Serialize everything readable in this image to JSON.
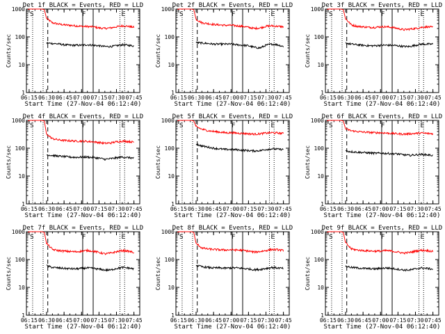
{
  "figure": {
    "xlabel": "Start Time (27-Nov-04 06:12:40)",
    "ylabel": "Counts/sec",
    "x_ticks": [
      "06:15",
      "06:30",
      "06:45",
      "07:00",
      "07:15",
      "07:30",
      "07:45"
    ],
    "y_ticks": [
      "1",
      "10",
      "100",
      "1000"
    ],
    "markers": [
      "S",
      "F",
      "E"
    ],
    "colors": {
      "events": "#000000",
      "lld": "#ff0000"
    }
  },
  "chart_data": [
    {
      "type": "line",
      "title": "Det 1f BLACK = Events, RED = LLD",
      "xlim": [
        "06:12:40",
        "07:50:00"
      ],
      "ylim": [
        1,
        1000
      ],
      "y_scale": "log",
      "x": [
        "06:30",
        "06:35",
        "06:40",
        "06:45",
        "06:50",
        "06:55",
        "07:00",
        "07:05",
        "07:10",
        "07:15",
        "07:20",
        "07:25",
        "07:30",
        "07:35",
        "07:40",
        "07:45"
      ],
      "series": [
        {
          "name": "LLD",
          "values": [
            460,
            320,
            290,
            270,
            260,
            250,
            240,
            235,
            230,
            210,
            200,
            210,
            230,
            250,
            240,
            220
          ]
        },
        {
          "name": "Events",
          "values": [
            60,
            58,
            56,
            52,
            50,
            50,
            50,
            52,
            50,
            48,
            45,
            45,
            48,
            52,
            50,
            47
          ]
        }
      ]
    },
    {
      "type": "line",
      "title": "Det 2f BLACK = Events, RED = LLD",
      "xlim": [
        "06:12:40",
        "07:50:00"
      ],
      "ylim": [
        1,
        1000
      ],
      "y_scale": "log",
      "x": [
        "06:30",
        "06:35",
        "06:40",
        "06:45",
        "06:50",
        "06:55",
        "07:00",
        "07:05",
        "07:10",
        "07:15",
        "07:20",
        "07:25",
        "07:30",
        "07:35",
        "07:40",
        "07:45"
      ],
      "series": [
        {
          "name": "LLD",
          "values": [
            430,
            320,
            300,
            280,
            270,
            260,
            260,
            250,
            240,
            220,
            200,
            210,
            240,
            250,
            240,
            230
          ]
        },
        {
          "name": "Events",
          "values": [
            62,
            60,
            58,
            55,
            55,
            55,
            55,
            52,
            50,
            48,
            42,
            40,
            50,
            55,
            52,
            45
          ]
        }
      ]
    },
    {
      "type": "line",
      "title": "Det 3f BLACK = Events, RED = LLD",
      "xlim": [
        "06:12:40",
        "07:50:00"
      ],
      "ylim": [
        1,
        1000
      ],
      "y_scale": "log",
      "x": [
        "06:30",
        "06:35",
        "06:40",
        "06:45",
        "06:50",
        "06:55",
        "07:00",
        "07:05",
        "07:10",
        "07:15",
        "07:20",
        "07:25",
        "07:30",
        "07:35",
        "07:40",
        "07:45"
      ],
      "series": [
        {
          "name": "LLD",
          "values": [
            450,
            270,
            240,
            230,
            220,
            220,
            230,
            230,
            220,
            200,
            180,
            190,
            200,
            220,
            230,
            220
          ]
        },
        {
          "name": "Events",
          "values": [
            60,
            55,
            52,
            50,
            48,
            48,
            50,
            50,
            50,
            48,
            45,
            45,
            50,
            55,
            55,
            55
          ]
        }
      ]
    },
    {
      "type": "line",
      "title": "Det 4f BLACK = Events, RED = LLD",
      "xlim": [
        "06:12:40",
        "07:50:00"
      ],
      "ylim": [
        1,
        1000
      ],
      "y_scale": "log",
      "x": [
        "06:30",
        "06:35",
        "06:40",
        "06:45",
        "06:50",
        "06:55",
        "07:00",
        "07:05",
        "07:10",
        "07:15",
        "07:20",
        "07:25",
        "07:30",
        "07:35",
        "07:40",
        "07:45"
      ],
      "series": [
        {
          "name": "LLD",
          "values": [
            320,
            220,
            200,
            190,
            185,
            180,
            180,
            175,
            170,
            160,
            150,
            155,
            170,
            180,
            175,
            165
          ]
        },
        {
          "name": "Events",
          "values": [
            58,
            55,
            52,
            50,
            48,
            47,
            48,
            48,
            46,
            44,
            40,
            42,
            45,
            48,
            46,
            44
          ]
        }
      ]
    },
    {
      "type": "line",
      "title": "Det 5f BLACK = Events, RED = LLD",
      "xlim": [
        "06:12:40",
        "07:50:00"
      ],
      "ylim": [
        1,
        1000
      ],
      "y_scale": "log",
      "x": [
        "06:30",
        "06:35",
        "06:40",
        "06:45",
        "06:50",
        "06:55",
        "07:00",
        "07:05",
        "07:10",
        "07:15",
        "07:20",
        "07:25",
        "07:30",
        "07:35",
        "07:40",
        "07:45"
      ],
      "series": [
        {
          "name": "LLD",
          "values": [
            600,
            480,
            430,
            400,
            380,
            360,
            360,
            350,
            340,
            330,
            320,
            330,
            350,
            360,
            350,
            340
          ]
        },
        {
          "name": "Events",
          "values": [
            140,
            120,
            110,
            100,
            95,
            90,
            90,
            88,
            85,
            82,
            80,
            82,
            90,
            95,
            92,
            90
          ]
        }
      ]
    },
    {
      "type": "line",
      "title": "Det 6f BLACK = Events, RED = LLD",
      "xlim": [
        "06:12:40",
        "07:50:00"
      ],
      "ylim": [
        1,
        1000
      ],
      "y_scale": "log",
      "x": [
        "06:30",
        "06:35",
        "06:40",
        "06:45",
        "06:50",
        "06:55",
        "07:00",
        "07:05",
        "07:10",
        "07:15",
        "07:20",
        "07:25",
        "07:30",
        "07:35",
        "07:40",
        "07:45"
      ],
      "series": [
        {
          "name": "LLD",
          "values": [
            500,
            420,
            400,
            380,
            370,
            360,
            360,
            350,
            340,
            330,
            320,
            330,
            340,
            350,
            340,
            330
          ]
        },
        {
          "name": "Events",
          "values": [
            80,
            75,
            72,
            70,
            68,
            66,
            66,
            65,
            64,
            62,
            58,
            55,
            58,
            60,
            58,
            55
          ]
        }
      ]
    },
    {
      "type": "line",
      "title": "Det 7f BLACK = Events, RED = LLD",
      "xlim": [
        "06:12:40",
        "07:50:00"
      ],
      "ylim": [
        1,
        1000
      ],
      "y_scale": "log",
      "x": [
        "06:30",
        "06:35",
        "06:40",
        "06:45",
        "06:50",
        "06:55",
        "07:00",
        "07:05",
        "07:10",
        "07:15",
        "07:20",
        "07:25",
        "07:30",
        "07:35",
        "07:40",
        "07:45"
      ],
      "series": [
        {
          "name": "LLD",
          "values": [
            380,
            230,
            210,
            200,
            195,
            190,
            200,
            210,
            200,
            180,
            160,
            170,
            190,
            210,
            200,
            180
          ]
        },
        {
          "name": "Events",
          "values": [
            60,
            52,
            50,
            48,
            47,
            46,
            48,
            50,
            48,
            45,
            42,
            42,
            48,
            52,
            50,
            46
          ]
        }
      ]
    },
    {
      "type": "line",
      "title": "Det 8f BLACK = Events, RED = LLD",
      "xlim": [
        "06:12:40",
        "07:50:00"
      ],
      "ylim": [
        1,
        1000
      ],
      "y_scale": "log",
      "x": [
        "06:30",
        "06:35",
        "06:40",
        "06:45",
        "06:50",
        "06:55",
        "07:00",
        "07:05",
        "07:10",
        "07:15",
        "07:20",
        "07:25",
        "07:30",
        "07:35",
        "07:40",
        "07:45"
      ],
      "series": [
        {
          "name": "LLD",
          "values": [
            380,
            260,
            240,
            230,
            225,
            220,
            225,
            220,
            215,
            200,
            185,
            195,
            210,
            230,
            225,
            210
          ]
        },
        {
          "name": "Events",
          "values": [
            62,
            55,
            52,
            50,
            50,
            49,
            50,
            50,
            48,
            46,
            43,
            44,
            48,
            52,
            50,
            48
          ]
        }
      ]
    },
    {
      "type": "line",
      "title": "Det 9f BLACK = Events, RED = LLD",
      "xlim": [
        "06:12:40",
        "07:50:00"
      ],
      "ylim": [
        1,
        1000
      ],
      "y_scale": "log",
      "x": [
        "06:30",
        "06:35",
        "06:40",
        "06:45",
        "06:50",
        "06:55",
        "07:00",
        "07:05",
        "07:10",
        "07:15",
        "07:20",
        "07:25",
        "07:30",
        "07:35",
        "07:40",
        "07:45"
      ],
      "series": [
        {
          "name": "LLD",
          "values": [
            400,
            240,
            220,
            210,
            205,
            200,
            200,
            210,
            200,
            185,
            170,
            180,
            200,
            215,
            210,
            195
          ]
        },
        {
          "name": "Events",
          "values": [
            58,
            52,
            50,
            48,
            47,
            46,
            48,
            50,
            48,
            45,
            42,
            42,
            46,
            50,
            48,
            45
          ]
        }
      ]
    }
  ]
}
